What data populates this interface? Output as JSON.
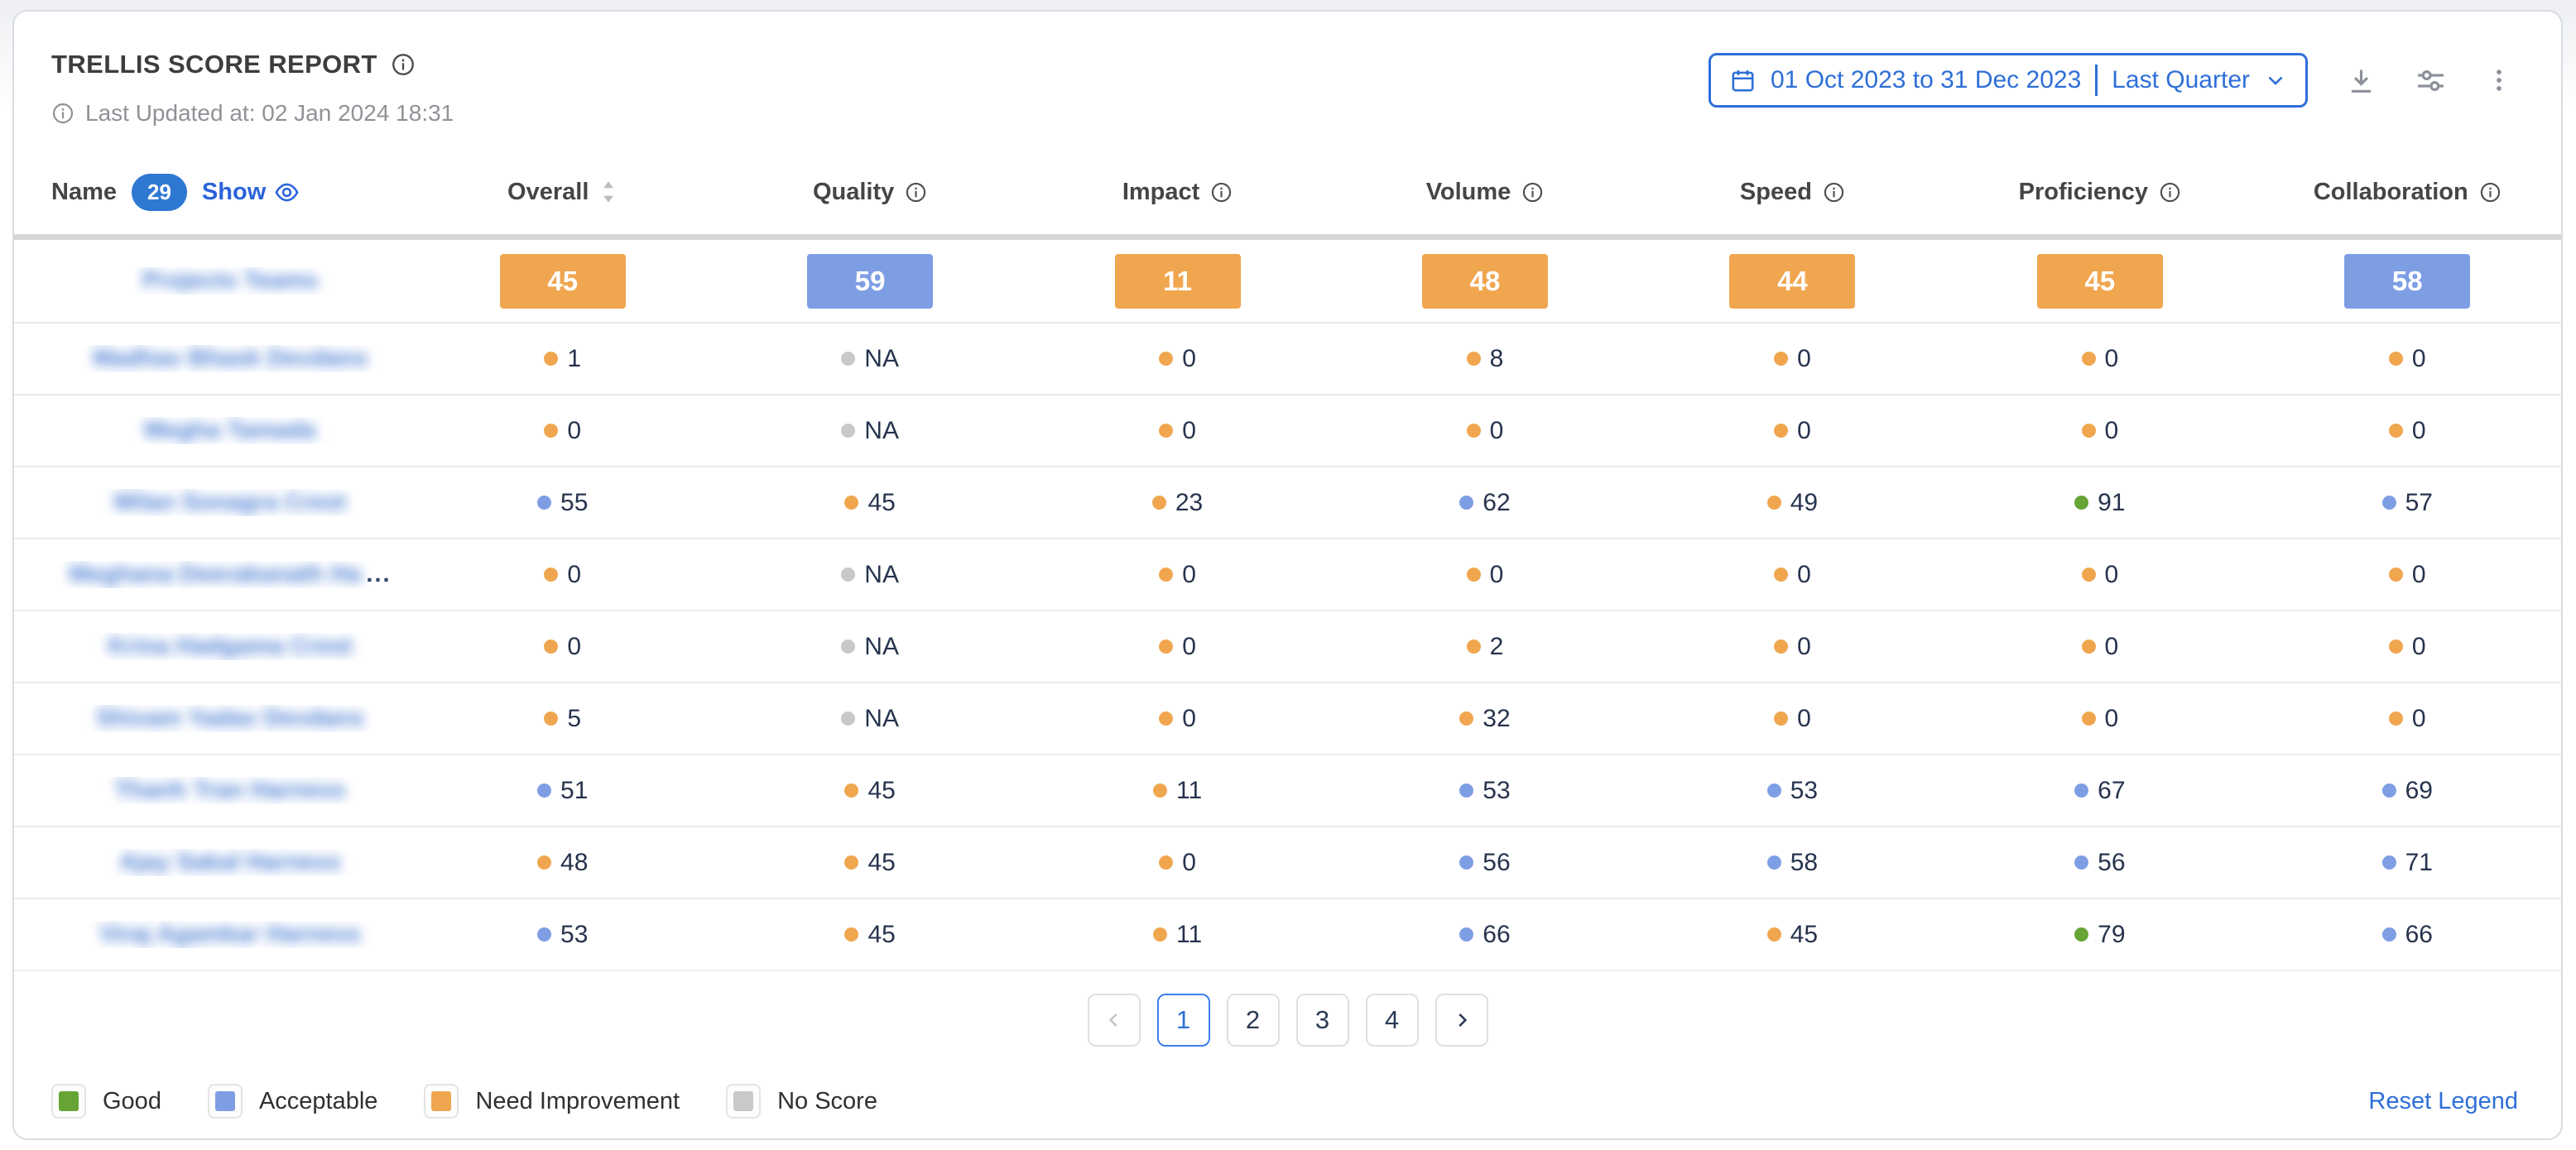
{
  "header": {
    "title": "TRELLIS SCORE REPORT",
    "last_updated": "Last Updated at: 02 Jan 2024 18:31",
    "date_range": "01 Oct 2023 to 31 Dec 2023",
    "date_preset": "Last Quarter"
  },
  "toolbar_icons": [
    "calendar-icon",
    "download-icon",
    "filter-settings-icon",
    "kebab-menu-icon"
  ],
  "table": {
    "name_header": "Name",
    "name_count": "29",
    "show_label": "Show",
    "names_blurred": true,
    "columns": [
      {
        "label": "Overall",
        "icon": "sort"
      },
      {
        "label": "Quality",
        "icon": "info"
      },
      {
        "label": "Impact",
        "icon": "info"
      },
      {
        "label": "Volume",
        "icon": "info"
      },
      {
        "label": "Speed",
        "icon": "info"
      },
      {
        "label": "Proficiency",
        "icon": "info"
      },
      {
        "label": "Collaboration",
        "icon": "info"
      }
    ],
    "team_row": {
      "name": "Projects Teams",
      "scores": [
        {
          "value": "45",
          "level": "need_improvement"
        },
        {
          "value": "59",
          "level": "acceptable"
        },
        {
          "value": "11",
          "level": "need_improvement"
        },
        {
          "value": "48",
          "level": "need_improvement"
        },
        {
          "value": "44",
          "level": "need_improvement"
        },
        {
          "value": "45",
          "level": "need_improvement"
        },
        {
          "value": "58",
          "level": "acceptable"
        }
      ]
    },
    "rows": [
      {
        "name": "Madhav Bhask Devdans",
        "truncated": false,
        "cells": [
          {
            "value": "1",
            "level": "need_improvement"
          },
          {
            "value": "NA",
            "level": "no_score"
          },
          {
            "value": "0",
            "level": "need_improvement"
          },
          {
            "value": "8",
            "level": "need_improvement"
          },
          {
            "value": "0",
            "level": "need_improvement"
          },
          {
            "value": "0",
            "level": "need_improvement"
          },
          {
            "value": "0",
            "level": "need_improvement"
          }
        ]
      },
      {
        "name": "Megha Tamada",
        "truncated": false,
        "cells": [
          {
            "value": "0",
            "level": "need_improvement"
          },
          {
            "value": "NA",
            "level": "no_score"
          },
          {
            "value": "0",
            "level": "need_improvement"
          },
          {
            "value": "0",
            "level": "need_improvement"
          },
          {
            "value": "0",
            "level": "need_improvement"
          },
          {
            "value": "0",
            "level": "need_improvement"
          },
          {
            "value": "0",
            "level": "need_improvement"
          }
        ]
      },
      {
        "name": "Milan Sonagra Crest",
        "truncated": false,
        "cells": [
          {
            "value": "55",
            "level": "acceptable"
          },
          {
            "value": "45",
            "level": "need_improvement"
          },
          {
            "value": "23",
            "level": "need_improvement"
          },
          {
            "value": "62",
            "level": "acceptable"
          },
          {
            "value": "49",
            "level": "need_improvement"
          },
          {
            "value": "91",
            "level": "good"
          },
          {
            "value": "57",
            "level": "acceptable"
          }
        ]
      },
      {
        "name": "Meghana Deerakanath Ha",
        "truncated": true,
        "cells": [
          {
            "value": "0",
            "level": "need_improvement"
          },
          {
            "value": "NA",
            "level": "no_score"
          },
          {
            "value": "0",
            "level": "need_improvement"
          },
          {
            "value": "0",
            "level": "need_improvement"
          },
          {
            "value": "0",
            "level": "need_improvement"
          },
          {
            "value": "0",
            "level": "need_improvement"
          },
          {
            "value": "0",
            "level": "need_improvement"
          }
        ]
      },
      {
        "name": "Krina Hadgama Crest",
        "truncated": false,
        "cells": [
          {
            "value": "0",
            "level": "need_improvement"
          },
          {
            "value": "NA",
            "level": "no_score"
          },
          {
            "value": "0",
            "level": "need_improvement"
          },
          {
            "value": "2",
            "level": "need_improvement"
          },
          {
            "value": "0",
            "level": "need_improvement"
          },
          {
            "value": "0",
            "level": "need_improvement"
          },
          {
            "value": "0",
            "level": "need_improvement"
          }
        ]
      },
      {
        "name": "Shivam Yadav Devdans",
        "truncated": false,
        "cells": [
          {
            "value": "5",
            "level": "need_improvement"
          },
          {
            "value": "NA",
            "level": "no_score"
          },
          {
            "value": "0",
            "level": "need_improvement"
          },
          {
            "value": "32",
            "level": "need_improvement"
          },
          {
            "value": "0",
            "level": "need_improvement"
          },
          {
            "value": "0",
            "level": "need_improvement"
          },
          {
            "value": "0",
            "level": "need_improvement"
          }
        ]
      },
      {
        "name": "Thanh Tran Harness",
        "truncated": false,
        "cells": [
          {
            "value": "51",
            "level": "acceptable"
          },
          {
            "value": "45",
            "level": "need_improvement"
          },
          {
            "value": "11",
            "level": "need_improvement"
          },
          {
            "value": "53",
            "level": "acceptable"
          },
          {
            "value": "53",
            "level": "acceptable"
          },
          {
            "value": "67",
            "level": "acceptable"
          },
          {
            "value": "69",
            "level": "acceptable"
          }
        ]
      },
      {
        "name": "Ajay Sakal Harness",
        "truncated": false,
        "cells": [
          {
            "value": "48",
            "level": "need_improvement"
          },
          {
            "value": "45",
            "level": "need_improvement"
          },
          {
            "value": "0",
            "level": "need_improvement"
          },
          {
            "value": "56",
            "level": "acceptable"
          },
          {
            "value": "58",
            "level": "acceptable"
          },
          {
            "value": "56",
            "level": "acceptable"
          },
          {
            "value": "71",
            "level": "acceptable"
          }
        ]
      },
      {
        "name": "Viraj Agamkar Harness",
        "truncated": false,
        "cells": [
          {
            "value": "53",
            "level": "acceptable"
          },
          {
            "value": "45",
            "level": "need_improvement"
          },
          {
            "value": "11",
            "level": "need_improvement"
          },
          {
            "value": "66",
            "level": "acceptable"
          },
          {
            "value": "45",
            "level": "need_improvement"
          },
          {
            "value": "79",
            "level": "good"
          },
          {
            "value": "66",
            "level": "acceptable"
          }
        ]
      }
    ]
  },
  "pagination": {
    "prev_enabled": false,
    "pages": [
      "1",
      "2",
      "3",
      "4"
    ],
    "active_page": "1",
    "next_enabled": true
  },
  "legend": {
    "items": [
      {
        "label": "Good",
        "level": "good",
        "color": "#67A436"
      },
      {
        "label": "Acceptable",
        "level": "acceptable",
        "color": "#7E9EE4"
      },
      {
        "label": "Need Improvement",
        "level": "need_improvement",
        "color": "#F0A64F"
      },
      {
        "label": "No Score",
        "level": "no_score",
        "color": "#C9C9C9"
      }
    ],
    "reset_label": "Reset Legend"
  },
  "colors": {
    "accent_blue": "#2E6FD8",
    "count_badge_blue": "#2E78D2",
    "good": "#67A436",
    "acceptable": "#7E9EE4",
    "need_improvement": "#F0A64F",
    "no_score": "#C9C9C9",
    "name_link": "#4C7ED3",
    "value_text": "#26334D"
  }
}
